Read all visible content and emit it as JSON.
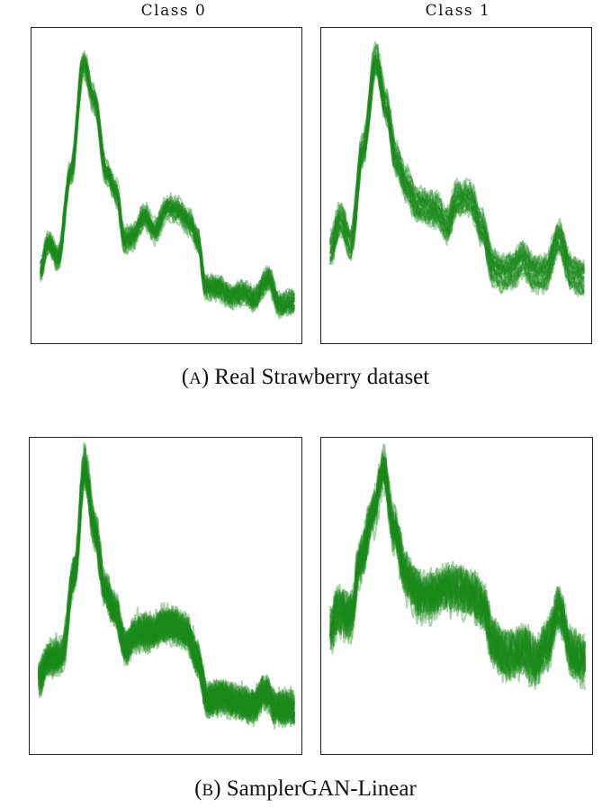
{
  "columns": [
    "Class 0",
    "Class 1"
  ],
  "captions": [
    {
      "letter": "A",
      "text": "Real Strawberry dataset"
    },
    {
      "letter": "B",
      "text": "SamplerGAN-Linear"
    }
  ],
  "colors": {
    "series": "#1a8a1a",
    "frame": "#222222"
  },
  "chart_data": [
    {
      "type": "line",
      "group": "Real Strawberry dataset",
      "title": "Class 0",
      "description": "overlaid spectra",
      "x": [
        0,
        1
      ],
      "noise": 0.02,
      "spread": 0.03,
      "count": 26,
      "profile": [
        [
          0,
          0.22
        ],
        [
          0.03,
          0.31
        ],
        [
          0.07,
          0.26
        ],
        [
          0.12,
          0.55
        ],
        [
          0.17,
          0.92
        ],
        [
          0.21,
          0.8
        ],
        [
          0.26,
          0.55
        ],
        [
          0.3,
          0.48
        ],
        [
          0.33,
          0.32
        ],
        [
          0.36,
          0.33
        ],
        [
          0.41,
          0.4
        ],
        [
          0.45,
          0.35
        ],
        [
          0.5,
          0.43
        ],
        [
          0.54,
          0.42
        ],
        [
          0.59,
          0.38
        ],
        [
          0.62,
          0.32
        ],
        [
          0.65,
          0.16
        ],
        [
          0.7,
          0.16
        ],
        [
          0.75,
          0.13
        ],
        [
          0.8,
          0.14
        ],
        [
          0.84,
          0.12
        ],
        [
          0.9,
          0.19
        ],
        [
          0.94,
          0.1
        ],
        [
          1,
          0.11
        ]
      ]
    },
    {
      "type": "line",
      "group": "Real Strawberry dataset",
      "title": "Class 1",
      "description": "overlaid spectra",
      "x": [
        0,
        1
      ],
      "noise": 0.02,
      "spread": 0.06,
      "count": 26,
      "profile": [
        [
          0,
          0.28
        ],
        [
          0.04,
          0.38
        ],
        [
          0.08,
          0.3
        ],
        [
          0.13,
          0.62
        ],
        [
          0.18,
          0.92
        ],
        [
          0.22,
          0.76
        ],
        [
          0.26,
          0.58
        ],
        [
          0.3,
          0.5
        ],
        [
          0.34,
          0.43
        ],
        [
          0.38,
          0.42
        ],
        [
          0.42,
          0.41
        ],
        [
          0.46,
          0.36
        ],
        [
          0.5,
          0.45
        ],
        [
          0.55,
          0.45
        ],
        [
          0.6,
          0.35
        ],
        [
          0.64,
          0.22
        ],
        [
          0.68,
          0.2
        ],
        [
          0.72,
          0.21
        ],
        [
          0.76,
          0.25
        ],
        [
          0.8,
          0.2
        ],
        [
          0.85,
          0.2
        ],
        [
          0.9,
          0.32
        ],
        [
          0.95,
          0.2
        ],
        [
          1,
          0.18
        ]
      ]
    },
    {
      "type": "line",
      "group": "SamplerGAN-Linear",
      "title": "Class 0",
      "description": "overlaid spectra",
      "x": [
        0,
        1
      ],
      "noise": 0.05,
      "spread": 0.03,
      "count": 26,
      "profile": [
        [
          0,
          0.22
        ],
        [
          0.04,
          0.29
        ],
        [
          0.09,
          0.3
        ],
        [
          0.14,
          0.58
        ],
        [
          0.18,
          0.93
        ],
        [
          0.22,
          0.72
        ],
        [
          0.26,
          0.52
        ],
        [
          0.3,
          0.45
        ],
        [
          0.34,
          0.33
        ],
        [
          0.39,
          0.38
        ],
        [
          0.44,
          0.38
        ],
        [
          0.49,
          0.4
        ],
        [
          0.53,
          0.4
        ],
        [
          0.58,
          0.38
        ],
        [
          0.62,
          0.29
        ],
        [
          0.66,
          0.15
        ],
        [
          0.72,
          0.16
        ],
        [
          0.78,
          0.14
        ],
        [
          0.84,
          0.13
        ],
        [
          0.89,
          0.18
        ],
        [
          0.93,
          0.12
        ],
        [
          1,
          0.12
        ]
      ]
    },
    {
      "type": "line",
      "group": "SamplerGAN-Linear",
      "title": "Class 1",
      "description": "overlaid spectra",
      "x": [
        0,
        1
      ],
      "noise": 0.05,
      "spread": 0.06,
      "count": 26,
      "profile": [
        [
          0,
          0.38
        ],
        [
          0.03,
          0.45
        ],
        [
          0.08,
          0.43
        ],
        [
          0.12,
          0.62
        ],
        [
          0.17,
          0.78
        ],
        [
          0.21,
          0.92
        ],
        [
          0.25,
          0.72
        ],
        [
          0.3,
          0.56
        ],
        [
          0.35,
          0.5
        ],
        [
          0.4,
          0.5
        ],
        [
          0.45,
          0.52
        ],
        [
          0.5,
          0.52
        ],
        [
          0.55,
          0.5
        ],
        [
          0.6,
          0.47
        ],
        [
          0.64,
          0.34
        ],
        [
          0.68,
          0.3
        ],
        [
          0.72,
          0.3
        ],
        [
          0.76,
          0.32
        ],
        [
          0.8,
          0.28
        ],
        [
          0.85,
          0.33
        ],
        [
          0.9,
          0.45
        ],
        [
          0.95,
          0.3
        ],
        [
          1,
          0.28
        ]
      ]
    }
  ]
}
